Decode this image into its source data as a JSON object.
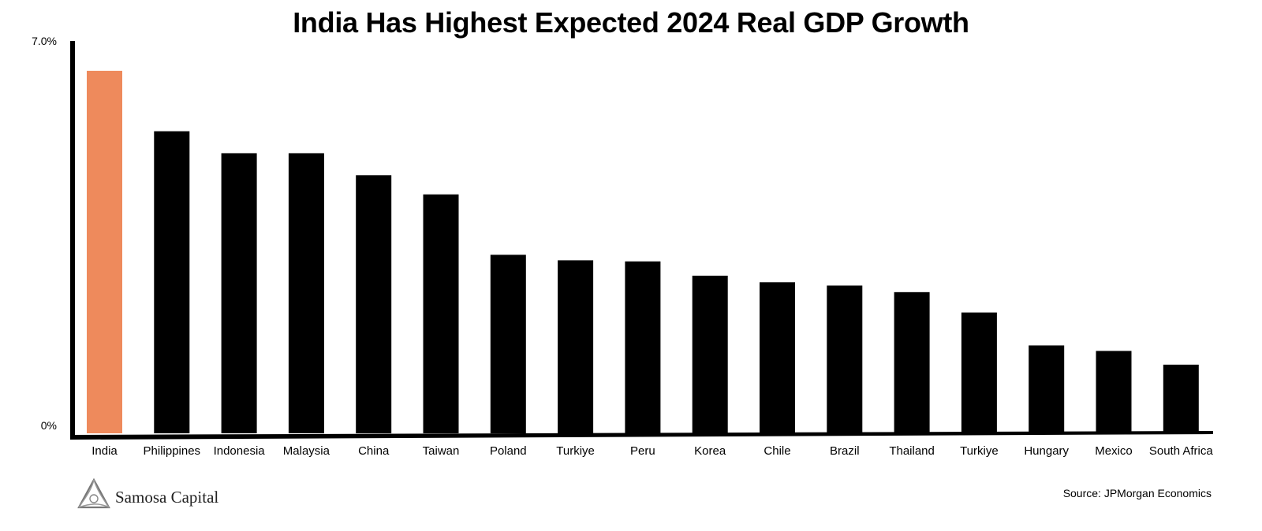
{
  "chart_data": {
    "type": "bar",
    "title": "India Has Highest Expected 2024 Real GDP Growth",
    "categories": [
      "India",
      "Philippines",
      "Indonesia",
      "Malaysia",
      "China",
      "Taiwan",
      "Poland",
      "Turkiye",
      "Peru",
      "Korea",
      "Chile",
      "Brazil",
      "Thailand",
      "Turkiye",
      "Hungary",
      "Mexico",
      "South Africa"
    ],
    "values": [
      6.6,
      5.5,
      5.1,
      5.1,
      4.7,
      4.35,
      3.25,
      3.15,
      3.13,
      2.87,
      2.75,
      2.69,
      2.57,
      2.2,
      1.6,
      1.5,
      1.25
    ],
    "ylim": [
      0,
      7.0
    ],
    "y_tick_labels": [
      "0%",
      "7.0%"
    ],
    "highlight_index": 0,
    "colors": {
      "highlight": "#EE8A5C",
      "bar": "#000000",
      "axis": "#000000"
    },
    "grid": false,
    "source": "Source: JPMorgan Economics"
  },
  "branding": {
    "logo_text": "Samosa Capital",
    "logo_icon": "samosa-triangle-logo"
  }
}
